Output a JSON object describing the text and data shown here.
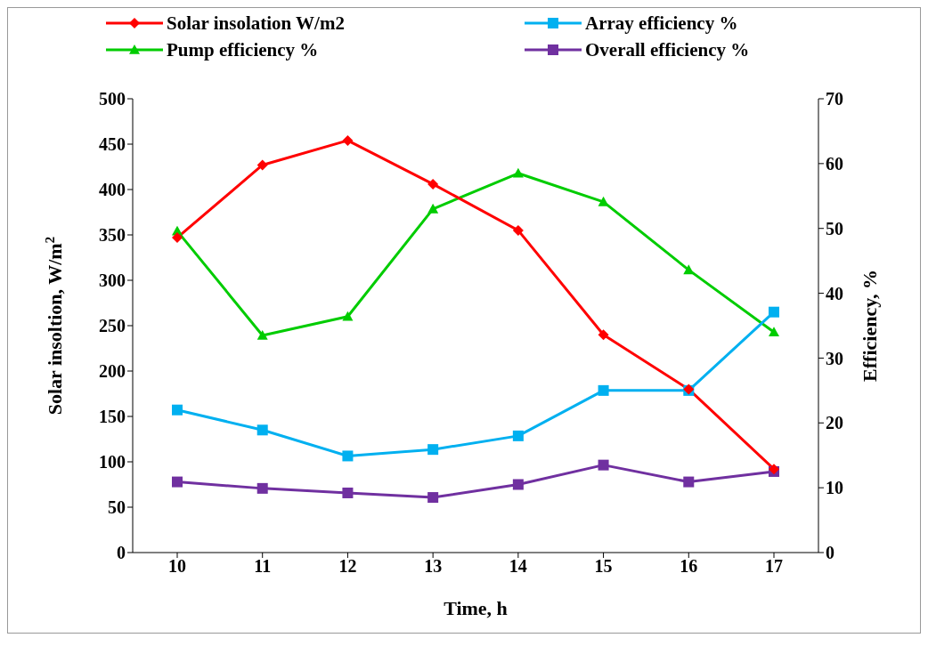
{
  "chart_data": {
    "type": "line",
    "xlabel": "Time, h",
    "ylabel": "Solar insoltion, W/m$^{2}$",
    "y2label": "Efficiency, %",
    "categories": [
      "10",
      "11",
      "12",
      "13",
      "14",
      "15",
      "16",
      "17"
    ],
    "ylim": [
      0,
      500
    ],
    "yticks": [
      0,
      50,
      100,
      150,
      200,
      250,
      300,
      350,
      400,
      450,
      500
    ],
    "y2lim": [
      0,
      70
    ],
    "y2ticks": [
      0,
      10,
      20,
      30,
      40,
      50,
      60,
      70
    ],
    "grid": false,
    "legend": "top",
    "series": [
      {
        "name": "Solar insolation W/m2",
        "color": "#ff0000",
        "marker": "diamond",
        "values": [
          347,
          427,
          454,
          406,
          355,
          240,
          180,
          92
        ]
      },
      {
        "name": "Array efficiency %",
        "color": "#00b0f0",
        "marker": "square",
        "axis": "y2",
        "values": [
          22,
          18.9,
          14.9,
          15.9,
          18,
          25,
          25,
          37.1
        ]
      },
      {
        "name": "Pump efficiency %",
        "color": "#00cc00",
        "marker": "triangle",
        "axis": "y2",
        "values": [
          49.6,
          33.5,
          36.4,
          53,
          58.5,
          54.1,
          43.6,
          34
        ]
      },
      {
        "name": "Overall efficiency %",
        "color": "#7030a0",
        "marker": "square",
        "axis": "y2",
        "values": [
          10.9,
          9.9,
          9.2,
          8.5,
          10.5,
          13.5,
          10.9,
          12.5
        ]
      }
    ]
  }
}
